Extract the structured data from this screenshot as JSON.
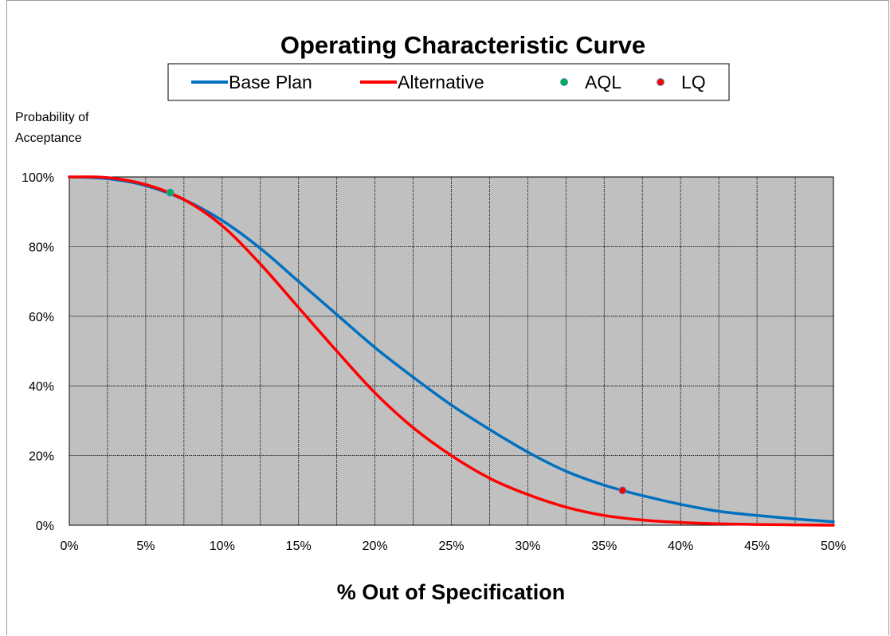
{
  "chart_data": {
    "type": "line",
    "title": "Operating Characteristic Curve",
    "xlabel": "% Out of Specification",
    "ylabel": [
      "Probability of",
      "Acceptance"
    ],
    "xlim": [
      0,
      50
    ],
    "ylim": [
      0,
      100
    ],
    "xticks": [
      "0%",
      "5%",
      "10%",
      "15%",
      "20%",
      "25%",
      "30%",
      "35%",
      "40%",
      "45%",
      "50%"
    ],
    "yticks": [
      "0%",
      "20%",
      "40%",
      "60%",
      "80%",
      "100%"
    ],
    "x_minor_step": 2.5,
    "grid": true,
    "legend_position": "top",
    "colors": {
      "plot_bg": "#c0c0c0",
      "base_plan": "#0070c0",
      "alternative": "#ff0000",
      "aql": "#00b050",
      "lq": "#ff0000"
    },
    "series": [
      {
        "name": "Base Plan",
        "kind": "line",
        "x": [
          0,
          2.5,
          5,
          7.5,
          10,
          12.5,
          15,
          17.5,
          20,
          22.5,
          25,
          27.5,
          30,
          32.5,
          35,
          37.5,
          40,
          42.5,
          45,
          47.5,
          50
        ],
        "y": [
          100,
          99.5,
          97.5,
          93.5,
          87.5,
          79.5,
          70,
          60.5,
          51,
          42.5,
          34.5,
          27.5,
          21,
          15.5,
          11.5,
          8.5,
          6,
          4,
          2.8,
          1.8,
          1
        ]
      },
      {
        "name": "Alternative",
        "kind": "line",
        "x": [
          0,
          2.5,
          5,
          7.5,
          10,
          12.5,
          15,
          17.5,
          20,
          22.5,
          25,
          27.5,
          30,
          32.5,
          35,
          37.5,
          40,
          42.5,
          45,
          47.5,
          50
        ],
        "y": [
          100,
          99.8,
          97.8,
          93.5,
          86,
          75,
          62.5,
          50,
          38,
          28,
          20,
          13.5,
          8.8,
          5.2,
          2.8,
          1.5,
          0.8,
          0.4,
          0.2,
          0.1,
          0
        ]
      },
      {
        "name": "AQL",
        "kind": "point",
        "x": [
          6.6
        ],
        "y": [
          95.5
        ]
      },
      {
        "name": "LQ",
        "kind": "point",
        "x": [
          36.2
        ],
        "y": [
          10
        ]
      }
    ]
  }
}
